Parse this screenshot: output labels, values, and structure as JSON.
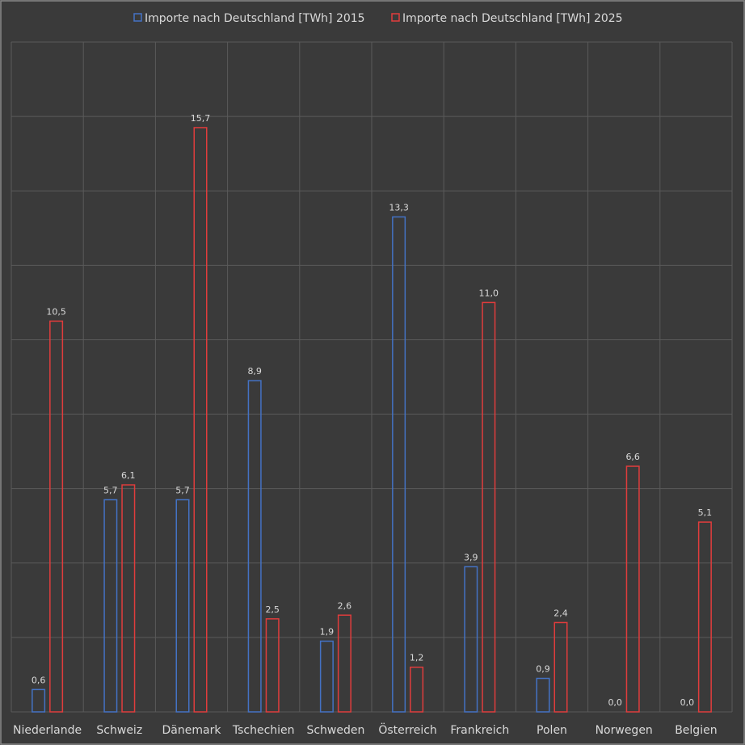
{
  "chart_data": {
    "type": "bar",
    "categories": [
      "Niederlande",
      "Schweiz",
      "Dänemark",
      "Tschechien",
      "Schweden",
      "Österreich",
      "Frankreich",
      "Polen",
      "Norwegen",
      "Belgien"
    ],
    "series": [
      {
        "name": "Importe nach Deutschland [TWh] 2015",
        "values": [
          0.6,
          5.7,
          5.7,
          8.9,
          1.9,
          13.3,
          3.9,
          0.9,
          0.0,
          0.0
        ],
        "labels": [
          "0,6",
          "5,7",
          "5,7",
          "8,9",
          "1,9",
          "13,3",
          "3,9",
          "0,9",
          "0,0",
          "0,0"
        ],
        "color": "#4472c4"
      },
      {
        "name": "Importe nach Deutschland [TWh] 2025",
        "values": [
          10.5,
          6.1,
          15.7,
          2.5,
          2.6,
          1.2,
          11.0,
          2.4,
          6.6,
          5.1
        ],
        "labels": [
          "10,5",
          "6,1",
          "15,7",
          "2,5",
          "2,6",
          "1,2",
          "11,0",
          "2,4",
          "6,6",
          "5,1"
        ],
        "color": "#e03c3c"
      }
    ],
    "ylim": [
      0,
      18
    ],
    "grid": true,
    "legend_position": "top"
  },
  "colors": {
    "background": "#3a3a3a",
    "border": "#8a8a8a",
    "gridline": "#5a5a5a",
    "text": "#d9d9d9"
  }
}
